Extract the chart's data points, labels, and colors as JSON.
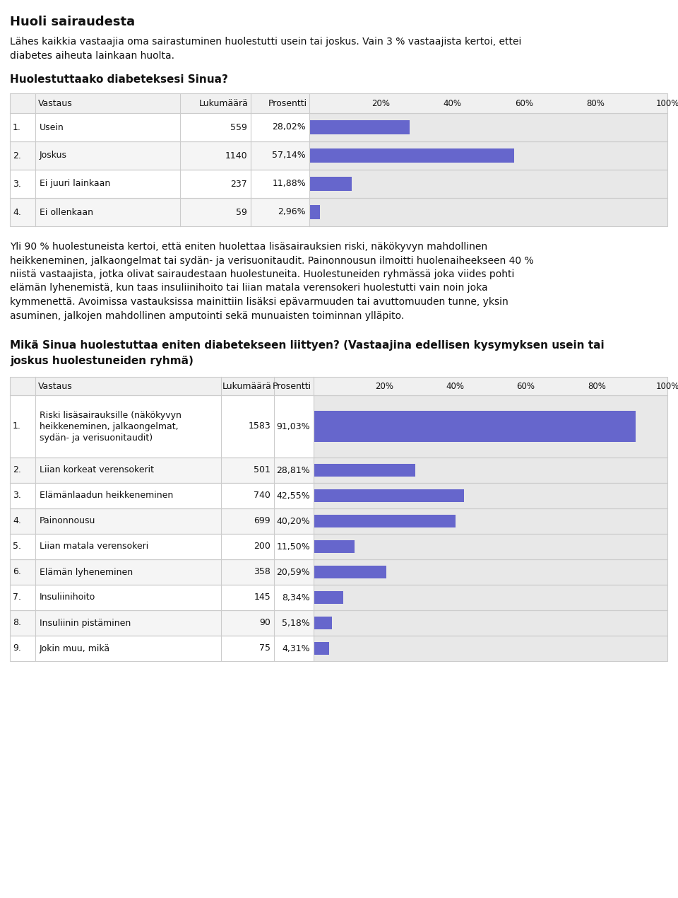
{
  "title": "Huoli sairaudesta",
  "intro_text": "Lähes kaikkia vastaajia oma sairastuminen huolestutti usein tai joskus. Vain 3 % vastaajista kertoi, ettei\ndiabetes aiheuta lainkaan huolta.",
  "q1_label": "Huolestuttaako diabeteksesi Sinua?",
  "q1_rows": [
    {
      "num": "1.",
      "label": "Usein",
      "count": "559",
      "pct": "28,02%",
      "val": 28.02
    },
    {
      "num": "2.",
      "label": "Joskus",
      "count": "1140",
      "pct": "57,14%",
      "val": 57.14
    },
    {
      "num": "3.",
      "label": "Ei juuri lainkaan",
      "count": "237",
      "pct": "11,88%",
      "val": 11.88
    },
    {
      "num": "4.",
      "label": "Ei ollenkaan",
      "count": "59",
      "pct": "2,96%",
      "val": 2.96
    }
  ],
  "middle_text": "Yli 90 % huolestuneista kertoi, että eniten huolettaa lisäsairauksien riski, näkökyvyn mahdollinen\nheikkeneminen, jalkaongelmat tai sydän- ja verisuonitaudit. Painonnousun ilmoitti huolenaiheekseen 40 %\nniistä vastaajista, jotka olivat sairaudestaan huolestuneita. Huolestuneiden ryhmässä joka viides pohti\nelämän lyhenemistä, kun taas insuliinihoito tai liian matala verensokeri huolestutti vain noin joka\nkymmenettä. Avoimissa vastauksissa mainittiin lisäksi epävarmuuden tai avuttomuuden tunne, yksin\nasuminen, jalkojen mahdollinen amputointi sekä munuaisten toiminnan ylläpito.",
  "q2_label": "Mikä Sinua huolestuttaa eniten diabetekseen liittyen? (Vastaajina edellisen kysymyksen usein tai\njoskus huolestuneiden ryhmä)",
  "q2_rows": [
    {
      "num": "1.",
      "label": "Riski lisäsairauksille (näkökyvyn\nheikkeneminen, jalkaongelmat,\nsydän- ja verisuonitaudit)",
      "count": "1583",
      "pct": "91,03%",
      "val": 91.03,
      "tall": true
    },
    {
      "num": "2.",
      "label": "Liian korkeat verensokerit",
      "count": "501",
      "pct": "28,81%",
      "val": 28.81,
      "tall": false
    },
    {
      "num": "3.",
      "label": "Elämänlaadun heikkeneminen",
      "count": "740",
      "pct": "42,55%",
      "val": 42.55,
      "tall": false
    },
    {
      "num": "4.",
      "label": "Painonnousu",
      "count": "699",
      "pct": "40,20%",
      "val": 40.2,
      "tall": false
    },
    {
      "num": "5.",
      "label": "Liian matala verensokeri",
      "count": "200",
      "pct": "11,50%",
      "val": 11.5,
      "tall": false
    },
    {
      "num": "6.",
      "label": "Elämän lyheneminen",
      "count": "358",
      "pct": "20,59%",
      "val": 20.59,
      "tall": false
    },
    {
      "num": "7.",
      "label": "Insuliinihoito",
      "count": "145",
      "pct": "8,34%",
      "val": 8.34,
      "tall": false
    },
    {
      "num": "8.",
      "label": "Insuliinin pistäminen",
      "count": "90",
      "pct": "5,18%",
      "val": 5.18,
      "tall": false
    },
    {
      "num": "9.",
      "label": "Jokin muu, mikä",
      "count": "75",
      "pct": "4,31%",
      "val": 4.31,
      "tall": false
    }
  ],
  "bar_color": "#6666cc",
  "bar_bg_color": "#e8e8e8",
  "header_bg": "#f0f0f0",
  "grid_color": "#cccccc",
  "white": "#ffffff",
  "alt_row_bg": "#f5f5f5",
  "text_dark": "#111111",
  "bg_color": "#ffffff"
}
